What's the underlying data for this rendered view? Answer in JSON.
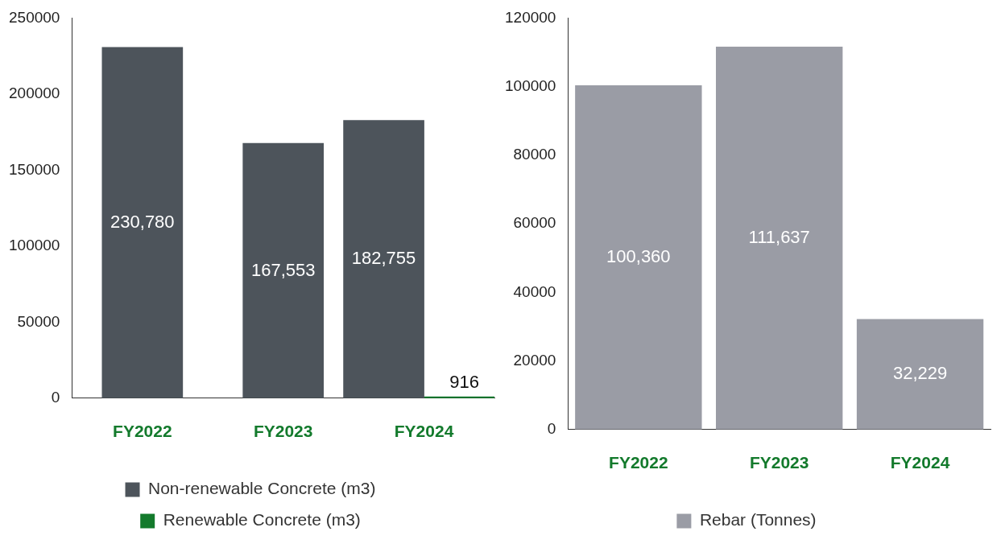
{
  "chart_data": [
    {
      "type": "bar",
      "categories": [
        "FY2022",
        "FY2023",
        "FY2024"
      ],
      "series": [
        {
          "name": "Non-renewable Concrete (m3)",
          "color": "#4d545b",
          "values": [
            230780,
            167553,
            182755
          ],
          "value_labels": [
            "230,780",
            "167,553",
            "182,755"
          ]
        },
        {
          "name": "Renewable Concrete (m3)",
          "color": "#137a2c",
          "values": [
            null,
            null,
            916
          ],
          "value_labels": [
            null,
            null,
            "916"
          ]
        }
      ],
      "ylim": [
        0,
        250000
      ],
      "yticks": [
        0,
        50000,
        100000,
        150000,
        200000,
        250000
      ],
      "grid": false,
      "legend": "bottom"
    },
    {
      "type": "bar",
      "categories": [
        "FY2022",
        "FY2023",
        "FY2024"
      ],
      "series": [
        {
          "name": "Rebar (Tonnes)",
          "color": "#9a9ca5",
          "values": [
            100360,
            111637,
            32229
          ],
          "value_labels": [
            "100,360",
            "111,637",
            "32,229"
          ]
        }
      ],
      "ylim": [
        0,
        120000
      ],
      "yticks": [
        0,
        20000,
        40000,
        60000,
        80000,
        100000,
        120000
      ],
      "grid": false,
      "legend": "bottom"
    }
  ]
}
